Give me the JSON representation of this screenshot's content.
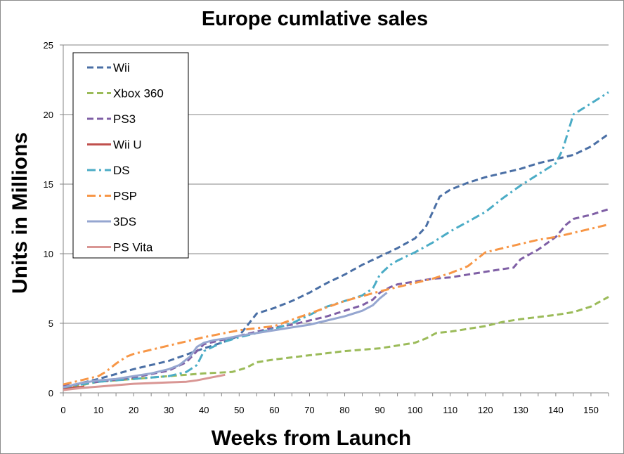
{
  "chart_data": {
    "type": "line",
    "title": "Europe cumlative sales",
    "xlabel": "Weeks from Launch",
    "ylabel": "Units in Millions",
    "xlim": [
      0,
      155
    ],
    "ylim": [
      0,
      25
    ],
    "xticks": [
      0,
      10,
      20,
      30,
      40,
      50,
      60,
      70,
      80,
      90,
      100,
      110,
      120,
      130,
      140,
      150
    ],
    "yticks": [
      0,
      5,
      10,
      15,
      20,
      25
    ],
    "grid": "horizontal",
    "legend_position": "top-left",
    "series": [
      {
        "name": "Wii",
        "color": "#4a6fa5",
        "dash": "dash",
        "x": [
          0,
          10,
          20,
          30,
          40,
          45,
          50,
          55,
          60,
          65,
          70,
          75,
          80,
          85,
          90,
          95,
          100,
          103,
          105,
          107,
          110,
          115,
          120,
          125,
          130,
          135,
          140,
          145,
          150,
          155
        ],
        "y": [
          0.4,
          1.0,
          1.7,
          2.3,
          3.2,
          3.6,
          4.1,
          5.7,
          6.1,
          6.6,
          7.2,
          7.9,
          8.5,
          9.2,
          9.8,
          10.4,
          11.1,
          11.9,
          13.0,
          14.1,
          14.6,
          15.1,
          15.5,
          15.8,
          16.1,
          16.5,
          16.8,
          17.1,
          17.7,
          18.6
        ]
      },
      {
        "name": "Xbox 360",
        "color": "#9bbb59",
        "dash": "dash",
        "x": [
          0,
          10,
          20,
          30,
          40,
          48,
          52,
          55,
          60,
          70,
          80,
          90,
          100,
          103,
          106,
          110,
          120,
          125,
          130,
          140,
          145,
          150,
          155
        ],
        "y": [
          0.3,
          0.8,
          1.0,
          1.2,
          1.4,
          1.5,
          1.8,
          2.2,
          2.4,
          2.7,
          3.0,
          3.2,
          3.6,
          3.9,
          4.3,
          4.4,
          4.8,
          5.1,
          5.3,
          5.6,
          5.8,
          6.2,
          6.9
        ]
      },
      {
        "name": "PS3",
        "color": "#7f5fa5",
        "dash": "dash",
        "x": [
          0,
          10,
          20,
          30,
          35,
          38,
          40,
          45,
          50,
          55,
          60,
          65,
          70,
          75,
          80,
          85,
          88,
          90,
          93,
          95,
          100,
          105,
          110,
          115,
          120,
          125,
          128,
          130,
          135,
          140,
          143,
          145,
          150,
          155
        ],
        "y": [
          0.5,
          0.8,
          1.1,
          1.6,
          2.2,
          3.0,
          3.5,
          3.8,
          4.1,
          4.4,
          4.7,
          4.9,
          5.2,
          5.5,
          5.9,
          6.3,
          6.7,
          7.2,
          7.6,
          7.8,
          8.0,
          8.2,
          8.3,
          8.5,
          8.7,
          8.9,
          9.0,
          9.6,
          10.3,
          11.2,
          12.1,
          12.5,
          12.8,
          13.2
        ]
      },
      {
        "name": "Wii U",
        "color": "#c0504d",
        "dash": "solid",
        "x": [
          0,
          2,
          4,
          6
        ],
        "y": [
          0.3,
          0.35,
          0.4,
          0.45
        ]
      },
      {
        "name": "DS",
        "color": "#4bacc6",
        "dash": "dashdot",
        "x": [
          0,
          10,
          20,
          30,
          35,
          38,
          40,
          45,
          50,
          55,
          60,
          65,
          70,
          75,
          80,
          85,
          88,
          90,
          93,
          95,
          100,
          105,
          110,
          115,
          120,
          125,
          130,
          135,
          140,
          142,
          145,
          150,
          155
        ],
        "y": [
          0.4,
          0.8,
          1.0,
          1.2,
          1.5,
          2.0,
          3.0,
          3.6,
          4.0,
          4.3,
          4.6,
          5.0,
          5.6,
          6.2,
          6.6,
          7.0,
          7.5,
          8.5,
          9.2,
          9.5,
          10.1,
          10.8,
          11.6,
          12.3,
          13.0,
          14.0,
          14.9,
          15.7,
          16.5,
          17.5,
          20.0,
          20.8,
          21.6
        ]
      },
      {
        "name": "PSP",
        "color": "#f79646",
        "dash": "dashdot",
        "x": [
          0,
          5,
          10,
          12,
          15,
          18,
          20,
          30,
          40,
          50,
          60,
          70,
          80,
          90,
          95,
          100,
          105,
          110,
          115,
          120,
          125,
          130,
          135,
          140,
          145,
          150,
          155
        ],
        "y": [
          0.6,
          0.9,
          1.2,
          1.5,
          2.1,
          2.6,
          2.8,
          3.4,
          4.0,
          4.5,
          4.8,
          5.7,
          6.6,
          7.3,
          7.6,
          7.9,
          8.2,
          8.6,
          9.1,
          10.1,
          10.4,
          10.7,
          11.0,
          11.2,
          11.5,
          11.8,
          12.1
        ]
      },
      {
        "name": "3DS",
        "color": "#95a6d0",
        "dash": "solid",
        "x": [
          0,
          5,
          10,
          15,
          20,
          25,
          30,
          33,
          36,
          38,
          40,
          43,
          46,
          50,
          55,
          60,
          65,
          70,
          75,
          80,
          85,
          88,
          90,
          92
        ],
        "y": [
          0.4,
          0.7,
          0.9,
          1.0,
          1.2,
          1.4,
          1.7,
          2.0,
          2.6,
          3.3,
          3.6,
          3.8,
          3.9,
          4.1,
          4.3,
          4.5,
          4.7,
          4.9,
          5.2,
          5.5,
          5.9,
          6.3,
          6.8,
          7.2
        ]
      },
      {
        "name": "PS Vita",
        "color": "#d99694",
        "dash": "solid",
        "x": [
          0,
          5,
          10,
          15,
          20,
          25,
          30,
          35,
          38,
          40,
          42,
          45,
          46
        ],
        "y": [
          0.2,
          0.35,
          0.45,
          0.55,
          0.65,
          0.7,
          0.75,
          0.8,
          0.9,
          1.0,
          1.1,
          1.25,
          1.3
        ]
      }
    ]
  }
}
